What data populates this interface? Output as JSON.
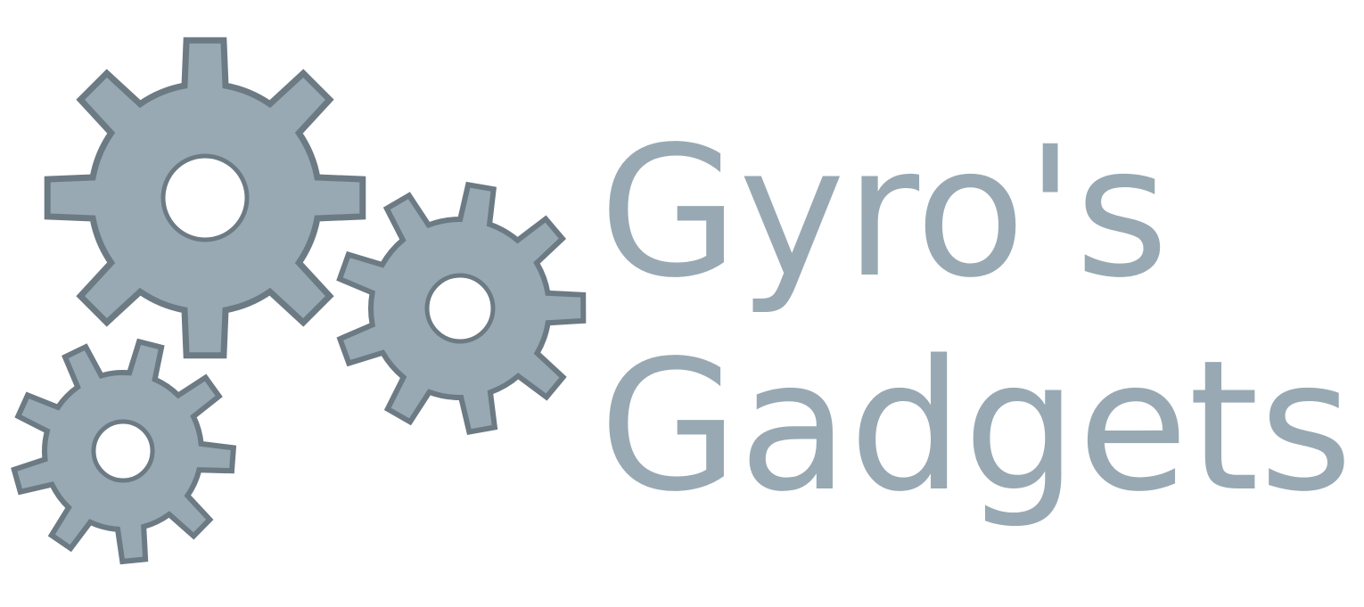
{
  "brand": {
    "line1": "Gyro's",
    "line2": "Gadgets",
    "text_color": "#98a9b3",
    "gear_fill": "#98a9b3",
    "gear_stroke": "#6c7a84",
    "background": "#ffffff"
  },
  "icons": [
    "gear-large-icon",
    "gear-medium-icon",
    "gear-small-icon"
  ]
}
